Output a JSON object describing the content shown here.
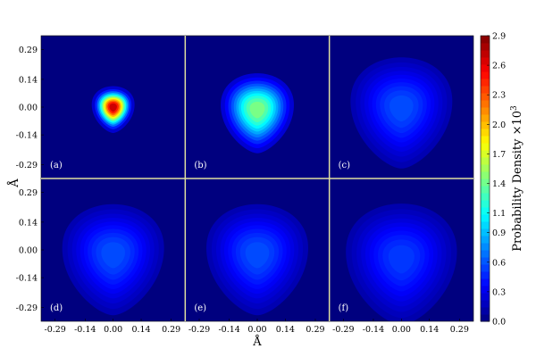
{
  "chart_data": {
    "type": "heatmap",
    "x_label": "Å",
    "y_label": "Å",
    "x_ticks": [
      -0.29,
      -0.14,
      0.0,
      0.14,
      0.29
    ],
    "x_tick_labels": [
      "-0.29",
      "-0.14",
      "0.00",
      "0.14",
      "0.29"
    ],
    "y_ticks": [
      0.29,
      0.14,
      0.0,
      -0.14,
      -0.29
    ],
    "y_tick_labels": [
      "0.29",
      "0.14",
      "0.00",
      "-0.14",
      "-0.29"
    ],
    "axis_range": [
      -0.36,
      0.36
    ],
    "colorbar": {
      "label_text": "Probability Density ×10",
      "label_exponent": "3",
      "ticks": [
        0.0,
        0.3,
        0.6,
        0.9,
        1.1,
        1.4,
        1.7,
        2.0,
        2.3,
        2.6,
        2.9
      ],
      "tick_labels": [
        "0.0",
        "0.3",
        "0.6",
        "0.9",
        "1.1",
        "1.4",
        "1.7",
        "2.0",
        "2.3",
        "2.6",
        "2.9"
      ],
      "range": [
        0.0,
        2.9
      ],
      "colormap": "jet"
    },
    "panels": [
      {
        "label": "(a)",
        "peak": 2.9,
        "peak_x": 0.0,
        "peak_y": 0.0,
        "spread": 0.035
      },
      {
        "label": "(b)",
        "peak": 1.55,
        "peak_x": 0.0,
        "peak_y": -0.01,
        "spread": 0.07
      },
      {
        "label": "(c)",
        "peak": 0.62,
        "peak_x": 0.0,
        "peak_y": 0.0,
        "spread": 0.11
      },
      {
        "label": "(d)",
        "peak": 0.62,
        "peak_x": 0.0,
        "peak_y": -0.02,
        "spread": 0.11
      },
      {
        "label": "(e)",
        "peak": 0.62,
        "peak_x": 0.0,
        "peak_y": -0.02,
        "spread": 0.11
      },
      {
        "label": "(f)",
        "peak": 0.56,
        "peak_x": 0.0,
        "peak_y": -0.04,
        "spread": 0.12
      }
    ],
    "background_color": "#00007f",
    "separator_color": "#e0e0a0"
  }
}
